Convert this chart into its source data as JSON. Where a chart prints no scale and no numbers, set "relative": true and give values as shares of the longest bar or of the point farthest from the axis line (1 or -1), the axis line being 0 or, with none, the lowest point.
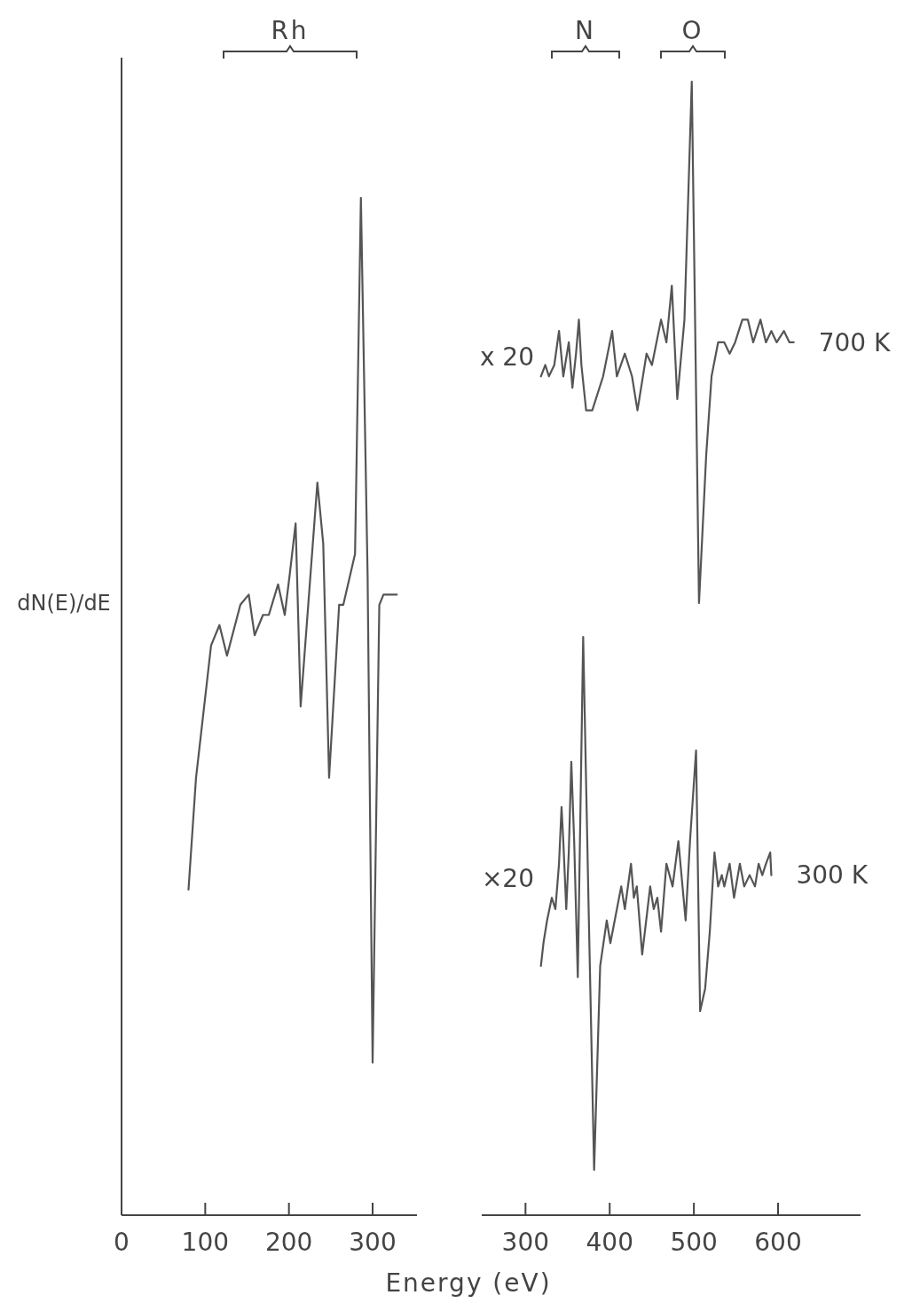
{
  "chart_data": [
    {
      "type": "line",
      "relative": true,
      "ylabel": "dN(E)/dE",
      "xlabel": "Energy (eV)",
      "xlim": [
        0,
        353
      ],
      "xticks": [
        0,
        100,
        200,
        300
      ],
      "grid": false,
      "legend": false,
      "marker": "none",
      "line_style": "solid",
      "annotations": [
        "Rh"
      ],
      "series": [
        {
          "color": "#555555",
          "x": [
            80,
            89,
            107,
            117,
            126,
            142,
            152,
            159,
            169,
            176,
            187,
            195,
            201,
            208,
            214,
            234,
            241,
            248,
            260,
            265,
            279,
            286,
            294,
            300,
            308,
            313,
            329
          ],
          "values": [
            0.32,
            0.43,
            0.56,
            0.58,
            0.55,
            0.6,
            0.61,
            0.57,
            0.59,
            0.59,
            0.62,
            0.59,
            0.63,
            0.68,
            0.5,
            0.72,
            0.66,
            0.43,
            0.6,
            0.6,
            0.65,
            1,
            0.63,
            0.15,
            0.6,
            0.61,
            0.61
          ]
        }
      ]
    },
    {
      "type": "line",
      "relative": true,
      "xlim": [
        248,
        698
      ],
      "xticks": [
        300,
        400,
        500,
        600
      ],
      "grid": false,
      "legend": false,
      "marker": "none",
      "line_style": "solid",
      "annotations": [
        "N",
        "O",
        "x 20",
        "×20"
      ],
      "series": [
        {
          "name": "700 K",
          "color": "#555555",
          "x": [
            318.3,
            323.5,
            327.8,
            334.2,
            339.8,
            344.9,
            351.4,
            355.7,
            360,
            363.4,
            366.4,
            372,
            379.3,
            392.2,
            402.9,
            408.5,
            418,
            426.5,
            433,
            443.8,
            450.2,
            461,
            467.4,
            473.8,
            480.3,
            488.8,
            497.5,
            506.1,
            514.6,
            521,
            528.8,
            536.1,
            542.5,
            549,
            557.6,
            564.1,
            570.5,
            579.1,
            585.6,
            592,
            598.4,
            607,
            613.5,
            618.6
          ],
          "values": [
            0.74,
            0.75,
            0.74,
            0.75,
            0.78,
            0.74,
            0.77,
            0.73,
            0.76,
            0.79,
            0.75,
            0.71,
            0.71,
            0.74,
            0.78,
            0.74,
            0.76,
            0.74,
            0.71,
            0.76,
            0.75,
            0.79,
            0.77,
            0.82,
            0.72,
            0.79,
            1,
            0.54,
            0.67,
            0.74,
            0.77,
            0.77,
            0.76,
            0.77,
            0.79,
            0.79,
            0.77,
            0.79,
            0.77,
            0.78,
            0.77,
            0.78,
            0.77,
            0.77
          ]
        },
        {
          "name": "300 K",
          "color": "#555555",
          "x": [
            318.3,
            321.3,
            325.6,
            331.2,
            335.5,
            339.8,
            342.8,
            344.9,
            348.4,
            351.4,
            354.4,
            357.8,
            362.1,
            368.5,
            375,
            381.5,
            388.7,
            396.5,
            400.8,
            413.7,
            418,
            425.3,
            428.7,
            432.2,
            438.6,
            448.1,
            452.3,
            456.6,
            461,
            467.4,
            474.7,
            481.6,
            490.2,
            495.4,
            502.6,
            507.4,
            513.4,
            518.9,
            524.5,
            528.8,
            533.2,
            536.1,
            542.5,
            547.7,
            554.6,
            559.8,
            566.2,
            572.6,
            576.9,
            581.3,
            585.6,
            590.7,
            592
          ],
          "values": [
            0.22,
            0.24,
            0.26,
            0.28,
            0.27,
            0.31,
            0.36,
            0.33,
            0.27,
            0.32,
            0.4,
            0.33,
            0.21,
            0.51,
            0.27,
            0.04,
            0.22,
            0.26,
            0.24,
            0.29,
            0.27,
            0.31,
            0.28,
            0.29,
            0.23,
            0.29,
            0.27,
            0.28,
            0.25,
            0.31,
            0.29,
            0.33,
            0.26,
            0.33,
            0.41,
            0.18,
            0.2,
            0.25,
            0.32,
            0.29,
            0.3,
            0.29,
            0.31,
            0.28,
            0.31,
            0.29,
            0.3,
            0.29,
            0.31,
            0.3,
            0.31,
            0.32,
            0.3
          ]
        }
      ]
    }
  ]
}
